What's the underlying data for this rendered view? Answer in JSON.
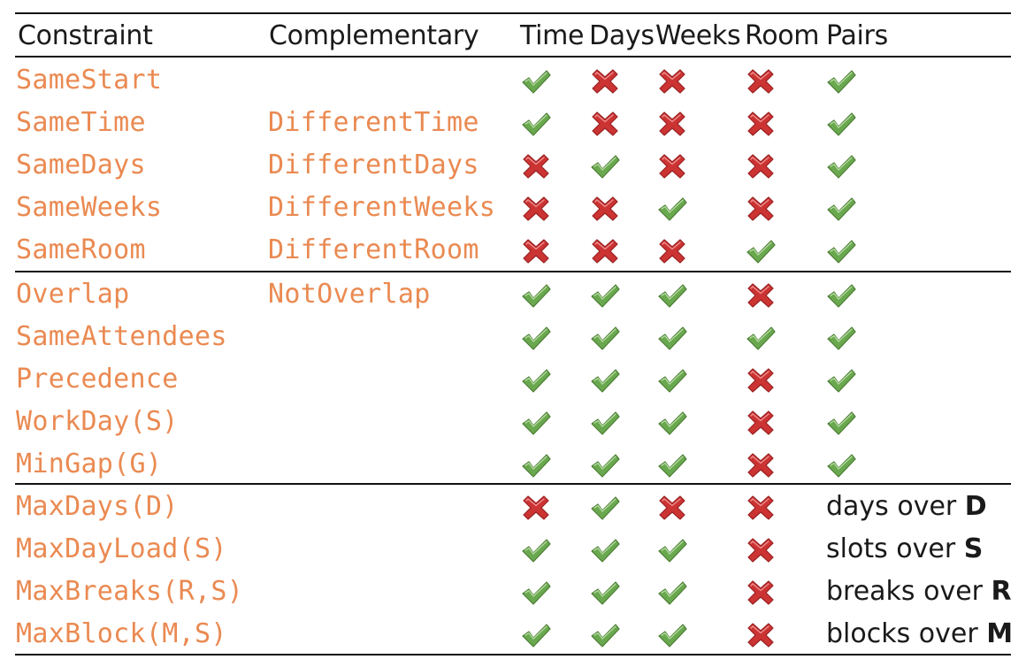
{
  "headers": {
    "constraint": "Constraint",
    "complementary": "Complementary",
    "time": "Time",
    "days": "Days",
    "weeks": "Weeks",
    "room": "Room",
    "pairs": "Pairs"
  },
  "colors": {
    "code": "#ea8a52",
    "check": "#6aa84f",
    "cross": "#cc3333"
  },
  "rows": [
    {
      "constraint": "SameStart",
      "complementary": "",
      "time": "check",
      "days": "cross",
      "weeks": "cross",
      "room": "cross",
      "pairs": "check"
    },
    {
      "constraint": "SameTime",
      "complementary": "DifferentTime",
      "time": "check",
      "days": "cross",
      "weeks": "cross",
      "room": "cross",
      "pairs": "check"
    },
    {
      "constraint": "SameDays",
      "complementary": "DifferentDays",
      "time": "cross",
      "days": "check",
      "weeks": "cross",
      "room": "cross",
      "pairs": "check"
    },
    {
      "constraint": "SameWeeks",
      "complementary": "DifferentWeeks",
      "time": "cross",
      "days": "cross",
      "weeks": "check",
      "room": "cross",
      "pairs": "check"
    },
    {
      "constraint": "SameRoom",
      "complementary": "DifferentRoom",
      "time": "cross",
      "days": "cross",
      "weeks": "cross",
      "room": "check",
      "pairs": "check"
    },
    {
      "constraint": "Overlap",
      "complementary": "NotOverlap",
      "time": "check",
      "days": "check",
      "weeks": "check",
      "room": "cross",
      "pairs": "check"
    },
    {
      "constraint": "SameAttendees",
      "complementary": "",
      "time": "check",
      "days": "check",
      "weeks": "check",
      "room": "check",
      "pairs": "check"
    },
    {
      "constraint": "Precedence",
      "complementary": "",
      "time": "check",
      "days": "check",
      "weeks": "check",
      "room": "cross",
      "pairs": "check"
    },
    {
      "constraint": "WorkDay(S)",
      "complementary": "",
      "time": "check",
      "days": "check",
      "weeks": "check",
      "room": "cross",
      "pairs": "check"
    },
    {
      "constraint": "MinGap(G)",
      "complementary": "",
      "time": "check",
      "days": "check",
      "weeks": "check",
      "room": "cross",
      "pairs": "check"
    },
    {
      "constraint": "MaxDays(D)",
      "complementary": "",
      "time": "cross",
      "days": "check",
      "weeks": "cross",
      "room": "cross",
      "pairs_text": "days over",
      "pairs_var": "D"
    },
    {
      "constraint": "MaxDayLoad(S)",
      "complementary": "",
      "time": "check",
      "days": "check",
      "weeks": "check",
      "room": "cross",
      "pairs_text": "slots over",
      "pairs_var": "S"
    },
    {
      "constraint": "MaxBreaks(R,S)",
      "complementary": "",
      "time": "check",
      "days": "check",
      "weeks": "check",
      "room": "cross",
      "pairs_text": "breaks over",
      "pairs_var": "R"
    },
    {
      "constraint": "MaxBlock(M,S)",
      "complementary": "",
      "time": "check",
      "days": "check",
      "weeks": "check",
      "room": "cross",
      "pairs_text": "blocks over",
      "pairs_var": "M"
    }
  ]
}
